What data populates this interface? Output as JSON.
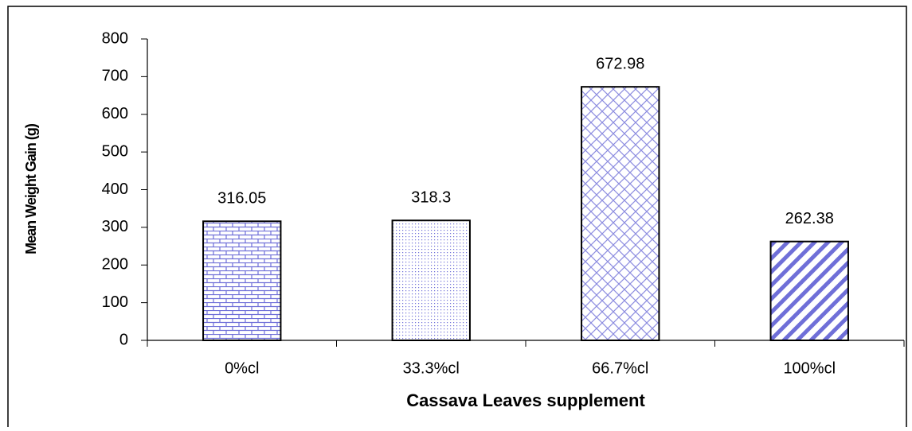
{
  "chart_data": {
    "type": "bar",
    "x_label": "Cassava Leaves supplement",
    "y_label": "Mean Weight Gain (g)",
    "categories": [
      "0%cl",
      "33.3%cl",
      "66.7%cl",
      "100%cl"
    ],
    "values": [
      316.05,
      318.3,
      672.98,
      262.38
    ],
    "color": "#6f6fd8",
    "ylim": [
      0,
      800
    ],
    "yticks": [
      0,
      100,
      200,
      300,
      400,
      500,
      600,
      700,
      800
    ],
    "grid": false
  }
}
